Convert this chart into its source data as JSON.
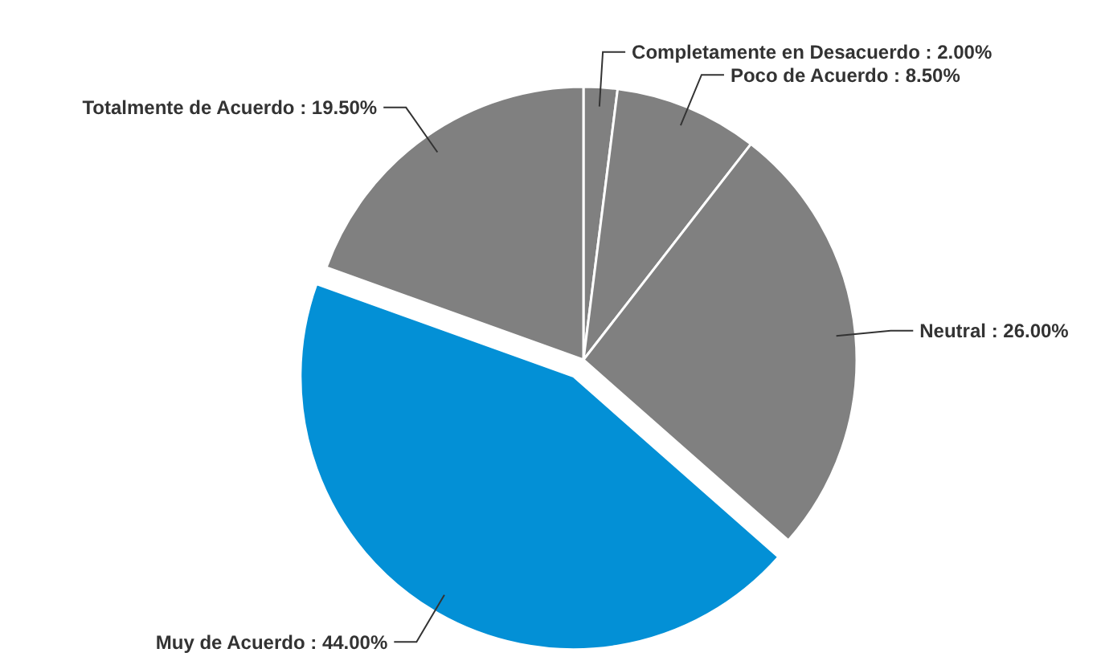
{
  "chart_data": {
    "type": "pie",
    "categories": [
      "Completamente en Desacuerdo",
      "Poco de Acuerdo",
      "Neutral",
      "Muy de Acuerdo",
      "Totalmente de Acuerdo"
    ],
    "values": [
      2.0,
      8.5,
      26.0,
      44.0,
      19.5
    ],
    "colors": [
      "#808080",
      "#808080",
      "#808080",
      "#0390d6",
      "#808080"
    ],
    "value_labels": [
      "2.00%",
      "8.50%",
      "26.00%",
      "44.00%",
      "19.50%"
    ]
  }
}
